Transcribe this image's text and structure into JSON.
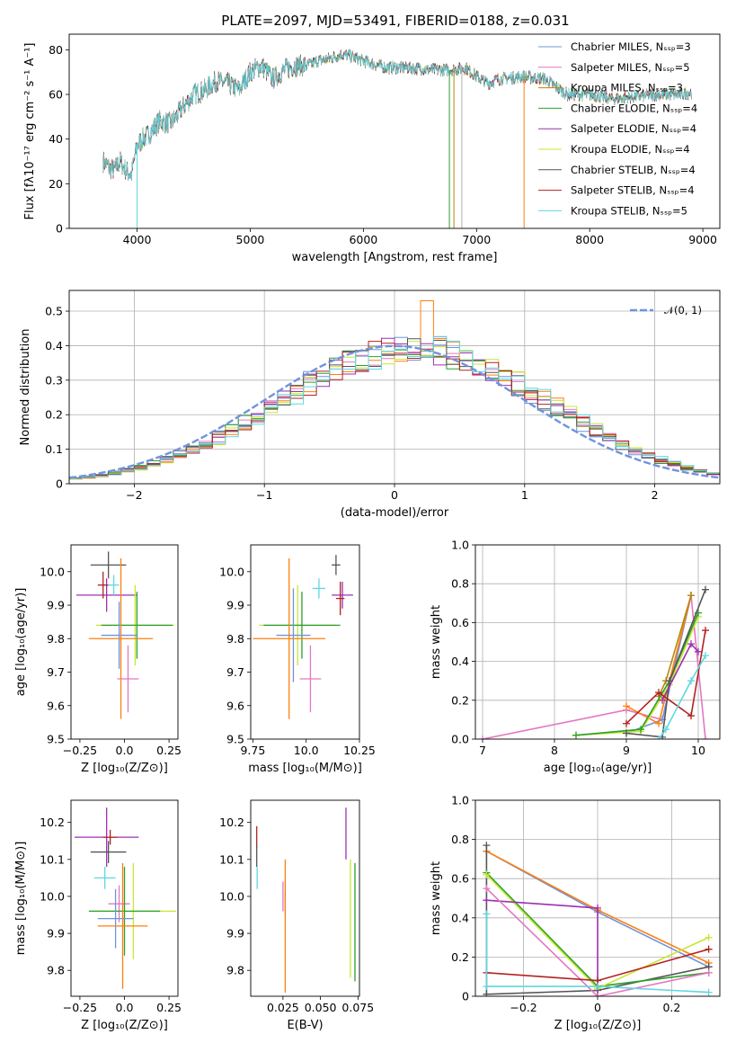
{
  "figure": {
    "title": "PLATE=2097, MJD=53491, FIBERID=0188, z=0.031"
  },
  "chart_data": [
    {
      "id": "spectrum",
      "type": "line",
      "title": "PLATE=2097, MJD=53491, FIBERID=0188, z=0.031",
      "xlabel": "wavelength [Angstrom, rest frame]",
      "ylabel": "Flux [fλ10⁻¹⁷ erg cm⁻² s⁻¹ A⁻¹]",
      "xlim": [
        3400,
        9150
      ],
      "ylim": [
        0,
        87
      ],
      "xticks": [
        4000,
        5000,
        6000,
        7000,
        8000,
        9000
      ],
      "yticks": [
        0,
        20,
        40,
        60,
        80
      ],
      "grid": false,
      "legend_placement": "top-right",
      "series": [
        {
          "name": "Chabrier MILES, Nₛₛₚ=3",
          "color": "#6f94dc"
        },
        {
          "name": "Salpeter MILES, Nₛₛₚ=5",
          "color": "#e377c2"
        },
        {
          "name": "Kroupa MILES, Nₛₛₚ=3",
          "color": "#b8860b"
        },
        {
          "name": "Chabrier ELODIE, Nₛₛₚ=4",
          "color": "#2ca02c"
        },
        {
          "name": "Salpeter ELODIE, Nₛₛₚ=4",
          "color": "#9b30b0"
        },
        {
          "name": "Kroupa ELODIE, Nₛₛₚ=4",
          "color": "#c8e632"
        },
        {
          "name": "Chabrier STELIB, Nₛₛₚ=4",
          "color": "#555555"
        },
        {
          "name": "Salpeter STELIB, Nₛₛₚ=4",
          "color": "#b22222"
        },
        {
          "name": "Kroupa STELIB, Nₛₛₚ=5",
          "color": "#5fd7e0"
        }
      ],
      "continuum": {
        "x": [
          3700,
          3760,
          3800,
          3850,
          3900,
          3950,
          4000,
          4050,
          4100,
          4200,
          4300,
          4400,
          4500,
          4600,
          4700,
          4800,
          4900,
          5000,
          5100,
          5200,
          5300,
          5400,
          5500,
          5600,
          5700,
          5800,
          5900,
          6000,
          6200,
          6400,
          6600,
          6800,
          6900,
          7000,
          7100,
          7200,
          7400,
          7600,
          7800,
          8000,
          8200,
          8400,
          8600,
          8800,
          8900
        ],
        "y": [
          30,
          27,
          26,
          30,
          26,
          24,
          37,
          40,
          42,
          48,
          47,
          54,
          60,
          62,
          66,
          65,
          62,
          70,
          73,
          67,
          71,
          73,
          73,
          75,
          76,
          78,
          77,
          75,
          72,
          72,
          71,
          71,
          72,
          68,
          65,
          67,
          68,
          67,
          60,
          60,
          58,
          59,
          60,
          60,
          61
        ]
      },
      "drops": [
        {
          "x": 4000,
          "y": 0
        },
        {
          "x": 6760,
          "y": 0
        },
        {
          "x": 6800,
          "y": 0
        },
        {
          "x": 6870,
          "y": 0
        },
        {
          "x": 7420,
          "y": 0
        }
      ]
    },
    {
      "id": "residuals",
      "type": "step",
      "xlabel": "(data-model)/error",
      "ylabel": "Normed distribution",
      "xlim": [
        -2.5,
        2.5
      ],
      "ylim": [
        0,
        0.56
      ],
      "xticks": [
        -2,
        -1,
        0,
        1,
        2
      ],
      "yticks": [
        0.0,
        0.1,
        0.2,
        0.3,
        0.4,
        0.5
      ],
      "grid": true,
      "legend_placement": "top-right",
      "reference": {
        "name": "𝒩(0, 1)",
        "mean": 0,
        "sigma": 1,
        "color": "#6f94dc"
      },
      "bin_edges_start": -2.5,
      "bin_width": 0.1,
      "peak": {
        "x": 0.25,
        "y": 0.53
      }
    },
    {
      "id": "age-vs-Z",
      "type": "errorbar",
      "xlabel": "Z [log₁₀(Z/Z⊙)]",
      "ylabel": "age  [log₁₀(age/yr)]",
      "xlim": [
        -0.3,
        0.3
      ],
      "ylim": [
        9.5,
        10.08
      ],
      "xticks": [
        -0.25,
        0.0,
        0.25
      ],
      "yticks": [
        9.5,
        9.6,
        9.7,
        9.8,
        9.9,
        10.0
      ],
      "points": [
        {
          "x": -0.09,
          "xerr": 0.1,
          "y": 10.02,
          "yerr": 0.04,
          "color": "#555555"
        },
        {
          "x": -0.1,
          "xerr": 0.17,
          "y": 9.93,
          "yerr": 0.05,
          "color": "#9b30b0"
        },
        {
          "x": -0.12,
          "xerr": 0.03,
          "y": 9.96,
          "yerr": 0.04,
          "color": "#b22222"
        },
        {
          "x": 0.06,
          "xerr": 0.22,
          "y": 9.84,
          "yerr": 0.12,
          "color": "#c8e632"
        },
        {
          "x": 0.07,
          "xerr": 0.2,
          "y": 9.84,
          "yerr": 0.1,
          "color": "#2ca02c"
        },
        {
          "x": -0.03,
          "xerr": 0.1,
          "y": 9.81,
          "yerr": 0.1,
          "color": "#6f94dc"
        },
        {
          "x": -0.02,
          "xerr": 0.18,
          "y": 9.8,
          "yerr": 0.24,
          "color": "#ff7f0e"
        },
        {
          "x": 0.02,
          "xerr": 0.06,
          "y": 9.68,
          "yerr": 0.1,
          "color": "#e377c2"
        },
        {
          "x": -0.06,
          "xerr": 0.03,
          "y": 9.96,
          "yerr": 0.03,
          "color": "#5fd7e0"
        }
      ]
    },
    {
      "id": "age-vs-mass",
      "type": "errorbar",
      "xlabel": "mass [log₁₀(M/M⊙)]",
      "ylabel": "",
      "xlim": [
        9.74,
        10.25
      ],
      "ylim": [
        9.5,
        10.08
      ],
      "xticks": [
        9.75,
        10.0,
        10.25
      ],
      "yticks": [
        9.5,
        9.6,
        9.7,
        9.8,
        9.9,
        10.0
      ],
      "points": [
        {
          "x": 10.14,
          "xerr": 0.02,
          "y": 10.02,
          "yerr": 0.03,
          "color": "#555555"
        },
        {
          "x": 10.17,
          "xerr": 0.05,
          "y": 9.93,
          "yerr": 0.04,
          "color": "#9b30b0"
        },
        {
          "x": 10.16,
          "xerr": 0.02,
          "y": 9.92,
          "yerr": 0.05,
          "color": "#b22222"
        },
        {
          "x": 10.06,
          "xerr": 0.03,
          "y": 9.95,
          "yerr": 0.03,
          "color": "#5fd7e0"
        },
        {
          "x": 9.96,
          "xerr": 0.18,
          "y": 9.84,
          "yerr": 0.12,
          "color": "#c8e632"
        },
        {
          "x": 9.98,
          "xerr": 0.18,
          "y": 9.84,
          "yerr": 0.1,
          "color": "#2ca02c"
        },
        {
          "x": 9.94,
          "xerr": 0.08,
          "y": 9.81,
          "yerr": 0.14,
          "color": "#6f94dc"
        },
        {
          "x": 9.92,
          "xerr": 0.17,
          "y": 9.8,
          "yerr": 0.24,
          "color": "#ff7f0e"
        },
        {
          "x": 10.02,
          "xerr": 0.05,
          "y": 9.68,
          "yerr": 0.1,
          "color": "#e377c2"
        }
      ]
    },
    {
      "id": "weight-vs-age",
      "type": "line",
      "xlabel": "age  [log₁₀(age/yr)]",
      "ylabel": "mass weight",
      "xlim": [
        6.9,
        10.3
      ],
      "ylim": [
        0,
        1
      ],
      "xticks": [
        7,
        8,
        9,
        10
      ],
      "yticks": [
        0.0,
        0.2,
        0.4,
        0.6,
        0.8,
        1.0
      ],
      "grid": true,
      "series": [
        {
          "color": "#e377c2",
          "x": [
            7.0,
            9.0,
            9.5,
            9.9,
            10.1
          ],
          "y": [
            0.0,
            0.15,
            0.1,
            0.74,
            0.0
          ]
        },
        {
          "color": "#6f94dc",
          "x": [
            9.0,
            9.5,
            9.9
          ],
          "y": [
            0.03,
            0.1,
            0.74
          ]
        },
        {
          "color": "#ff7f0e",
          "x": [
            9.0,
            9.45,
            9.9
          ],
          "y": [
            0.17,
            0.08,
            0.74
          ]
        },
        {
          "color": "#b8860b",
          "x": [
            9.45,
            9.55,
            9.9
          ],
          "y": [
            0.22,
            0.3,
            0.74
          ]
        },
        {
          "color": "#c8e632",
          "x": [
            8.3,
            9.2,
            9.6,
            10.0
          ],
          "y": [
            0.02,
            0.04,
            0.28,
            0.63
          ]
        },
        {
          "color": "#2ca02c",
          "x": [
            8.3,
            9.2,
            9.6,
            10.0
          ],
          "y": [
            0.02,
            0.05,
            0.3,
            0.65
          ]
        },
        {
          "color": "#555555",
          "x": [
            9.0,
            9.5,
            9.6,
            10.1
          ],
          "y": [
            0.03,
            0.01,
            0.3,
            0.77
          ]
        },
        {
          "color": "#9b30b0",
          "x": [
            9.5,
            9.9,
            10.0
          ],
          "y": [
            0.2,
            0.49,
            0.45
          ]
        },
        {
          "color": "#b22222",
          "x": [
            9.0,
            9.45,
            9.9,
            10.1
          ],
          "y": [
            0.08,
            0.24,
            0.12,
            0.56
          ]
        },
        {
          "color": "#5fd7e0",
          "x": [
            9.45,
            9.55,
            9.9,
            10.1
          ],
          "y": [
            0.0,
            0.05,
            0.3,
            0.43
          ]
        }
      ]
    },
    {
      "id": "mass-vs-Z",
      "type": "errorbar",
      "xlabel": "Z [log₁₀(Z/Z⊙)]",
      "ylabel": "mass [log₁₀(M/M⊙)]",
      "xlim": [
        -0.3,
        0.3
      ],
      "ylim": [
        9.73,
        10.26
      ],
      "xticks": [
        -0.25,
        0.0,
        0.25
      ],
      "yticks": [
        9.8,
        9.9,
        10.0,
        10.1,
        10.2
      ],
      "points": [
        {
          "x": -0.1,
          "xerr": 0.18,
          "y": 10.16,
          "yerr": 0.08,
          "color": "#9b30b0"
        },
        {
          "x": -0.08,
          "xerr": 0.04,
          "y": 10.16,
          "yerr": 0.02,
          "color": "#b22222"
        },
        {
          "x": -0.09,
          "xerr": 0.1,
          "y": 10.12,
          "yerr": 0.03,
          "color": "#555555"
        },
        {
          "x": -0.11,
          "xerr": 0.06,
          "y": 10.05,
          "yerr": 0.03,
          "color": "#5fd7e0"
        },
        {
          "x": -0.03,
          "xerr": 0.06,
          "y": 9.98,
          "yerr": 0.05,
          "color": "#e377c2"
        },
        {
          "x": 0.05,
          "xerr": 0.24,
          "y": 9.96,
          "yerr": 0.13,
          "color": "#c8e632"
        },
        {
          "x": 0.0,
          "xerr": 0.2,
          "y": 9.96,
          "yerr": 0.12,
          "color": "#2ca02c"
        },
        {
          "x": -0.05,
          "xerr": 0.1,
          "y": 9.94,
          "yerr": 0.08,
          "color": "#6f94dc"
        },
        {
          "x": -0.01,
          "xerr": 0.14,
          "y": 9.92,
          "yerr": 0.17,
          "color": "#ff7f0e"
        }
      ]
    },
    {
      "id": "mass-vs-EBV",
      "type": "errorbar",
      "xlabel": "E(B-V)",
      "ylabel": "",
      "xlim": [
        0.0035,
        0.076
      ],
      "ylim": [
        9.73,
        10.26
      ],
      "xticks": [
        0.025,
        0.05,
        0.075
      ],
      "xticklabels": [
        "0.025",
        "0.050",
        "0.075"
      ],
      "yticks": [
        9.8,
        9.9,
        10.0,
        10.1,
        10.2
      ],
      "points": [
        {
          "x": 0.0075,
          "xerr": 0,
          "y": 10.16,
          "yerr": 0.03,
          "color": "#b22222"
        },
        {
          "x": 0.0075,
          "xerr": 0,
          "y": 10.11,
          "yerr": 0.03,
          "color": "#555555"
        },
        {
          "x": 0.0078,
          "xerr": 0,
          "y": 10.05,
          "yerr": 0.03,
          "color": "#5fd7e0"
        },
        {
          "x": 0.025,
          "xerr": 0,
          "y": 10.0,
          "yerr": 0.04,
          "color": "#e377c2"
        },
        {
          "x": 0.0265,
          "xerr": 0,
          "y": 9.98,
          "yerr": 0.03,
          "color": "#6f94dc"
        },
        {
          "x": 0.0265,
          "xerr": 0,
          "y": 9.92,
          "yerr": 0.18,
          "color": "#ff7f0e"
        },
        {
          "x": 0.067,
          "xerr": 0,
          "y": 10.17,
          "yerr": 0.07,
          "color": "#9b30b0"
        },
        {
          "x": 0.07,
          "xerr": 0,
          "y": 9.94,
          "yerr": 0.16,
          "color": "#c8e632"
        },
        {
          "x": 0.073,
          "xerr": 0,
          "y": 9.93,
          "yerr": 0.16,
          "color": "#2ca02c"
        }
      ]
    },
    {
      "id": "weight-vs-Z",
      "type": "line",
      "xlabel": "Z [log₁₀(Z/Z⊙)]",
      "ylabel": "mass weight",
      "xlim": [
        -0.33,
        0.33
      ],
      "ylim": [
        0,
        1
      ],
      "xticks": [
        -0.2,
        0.0,
        0.2
      ],
      "yticks": [
        0.0,
        0.2,
        0.4,
        0.6,
        0.8,
        1.0
      ],
      "grid": true,
      "series": [
        {
          "color": "#6f94dc",
          "x": [
            -0.3,
            0.0,
            0.3
          ],
          "y": [
            0.74,
            0.43,
            0.15
          ]
        },
        {
          "color": "#ff7f0e",
          "x": [
            -0.3,
            0.0,
            0.3
          ],
          "y": [
            0.74,
            0.44,
            0.17
          ]
        },
        {
          "color": "#555555",
          "x": [
            -0.3,
            -0.3,
            0.0,
            0.3
          ],
          "y": [
            0.77,
            0.01,
            0.03,
            0.15
          ]
        },
        {
          "color": "#2ca02c",
          "x": [
            -0.3,
            0.0,
            0.3
          ],
          "y": [
            0.63,
            0.05,
            0.12
          ]
        },
        {
          "color": "#c8e632",
          "x": [
            -0.3,
            0.0,
            0.3
          ],
          "y": [
            0.62,
            0.04,
            0.3
          ]
        },
        {
          "color": "#9b30b0",
          "x": [
            -0.3,
            0.0,
            0.0
          ],
          "y": [
            0.49,
            0.45,
            0.0
          ]
        },
        {
          "color": "#e377c2",
          "x": [
            -0.3,
            0.0,
            0.3
          ],
          "y": [
            0.55,
            0.0,
            0.12
          ]
        },
        {
          "color": "#b22222",
          "x": [
            -0.3,
            0.0,
            0.3
          ],
          "y": [
            0.12,
            0.08,
            0.24
          ]
        },
        {
          "color": "#5fd7e0",
          "x": [
            -0.3,
            -0.3,
            0.0,
            0.3
          ],
          "y": [
            0.42,
            0.05,
            0.05,
            0.02
          ]
        }
      ]
    }
  ]
}
